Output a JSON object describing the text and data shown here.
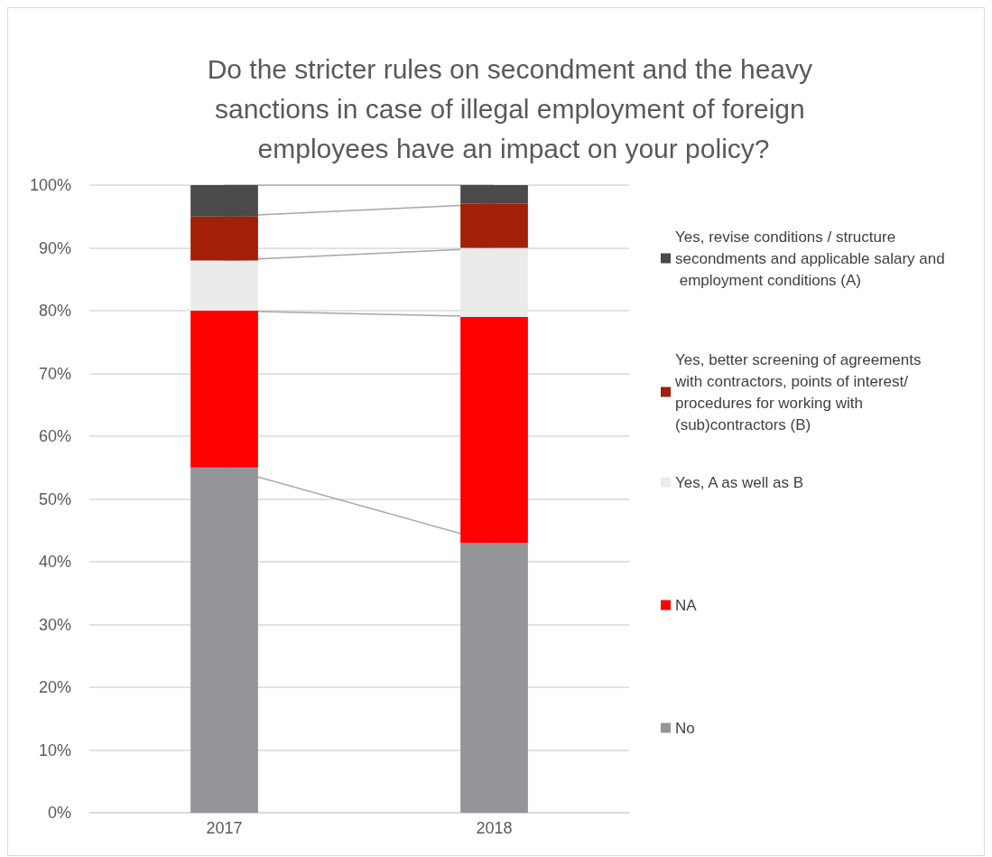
{
  "chart_data": {
    "type": "bar",
    "title": "Do the stricter rules on secondment and the heavy sanctions in case of illegal employment of foreign employees have an impact on your policy?",
    "categories": [
      "2017",
      "2018"
    ],
    "stacked": true,
    "series": [
      {
        "name": "No",
        "color": "#939598",
        "values": [
          55,
          43
        ]
      },
      {
        "name": "NA",
        "color": "#ff0000",
        "values": [
          25,
          36
        ]
      },
      {
        "name": "Yes, A as well as B",
        "color": "#ebebeb",
        "values": [
          8,
          11
        ]
      },
      {
        "name": "Yes, better screening of agreements with contractors, points of interest/procedures for working with (sub)contractors (B)",
        "color": "#a21f09",
        "values": [
          7,
          7
        ]
      },
      {
        "name": "Yes, revise conditions / structure secondments and applicable salary and employment conditions (A)",
        "color": "#4a4a48",
        "values": [
          5,
          3
        ]
      }
    ],
    "ylim": [
      0,
      100
    ],
    "yticks": [
      {
        "value": 0,
        "label": "0%"
      },
      {
        "value": 10,
        "label": "10%"
      },
      {
        "value": 20,
        "label": "20%"
      },
      {
        "value": 30,
        "label": "30%"
      },
      {
        "value": 40,
        "label": "40%"
      },
      {
        "value": 50,
        "label": "50%"
      },
      {
        "value": 60,
        "label": "60%"
      },
      {
        "value": 70,
        "label": "70%"
      },
      {
        "value": 80,
        "label": "80%"
      },
      {
        "value": 90,
        "label": "90%"
      },
      {
        "value": 100,
        "label": "100%"
      }
    ],
    "grid": "y",
    "legend": "right"
  }
}
